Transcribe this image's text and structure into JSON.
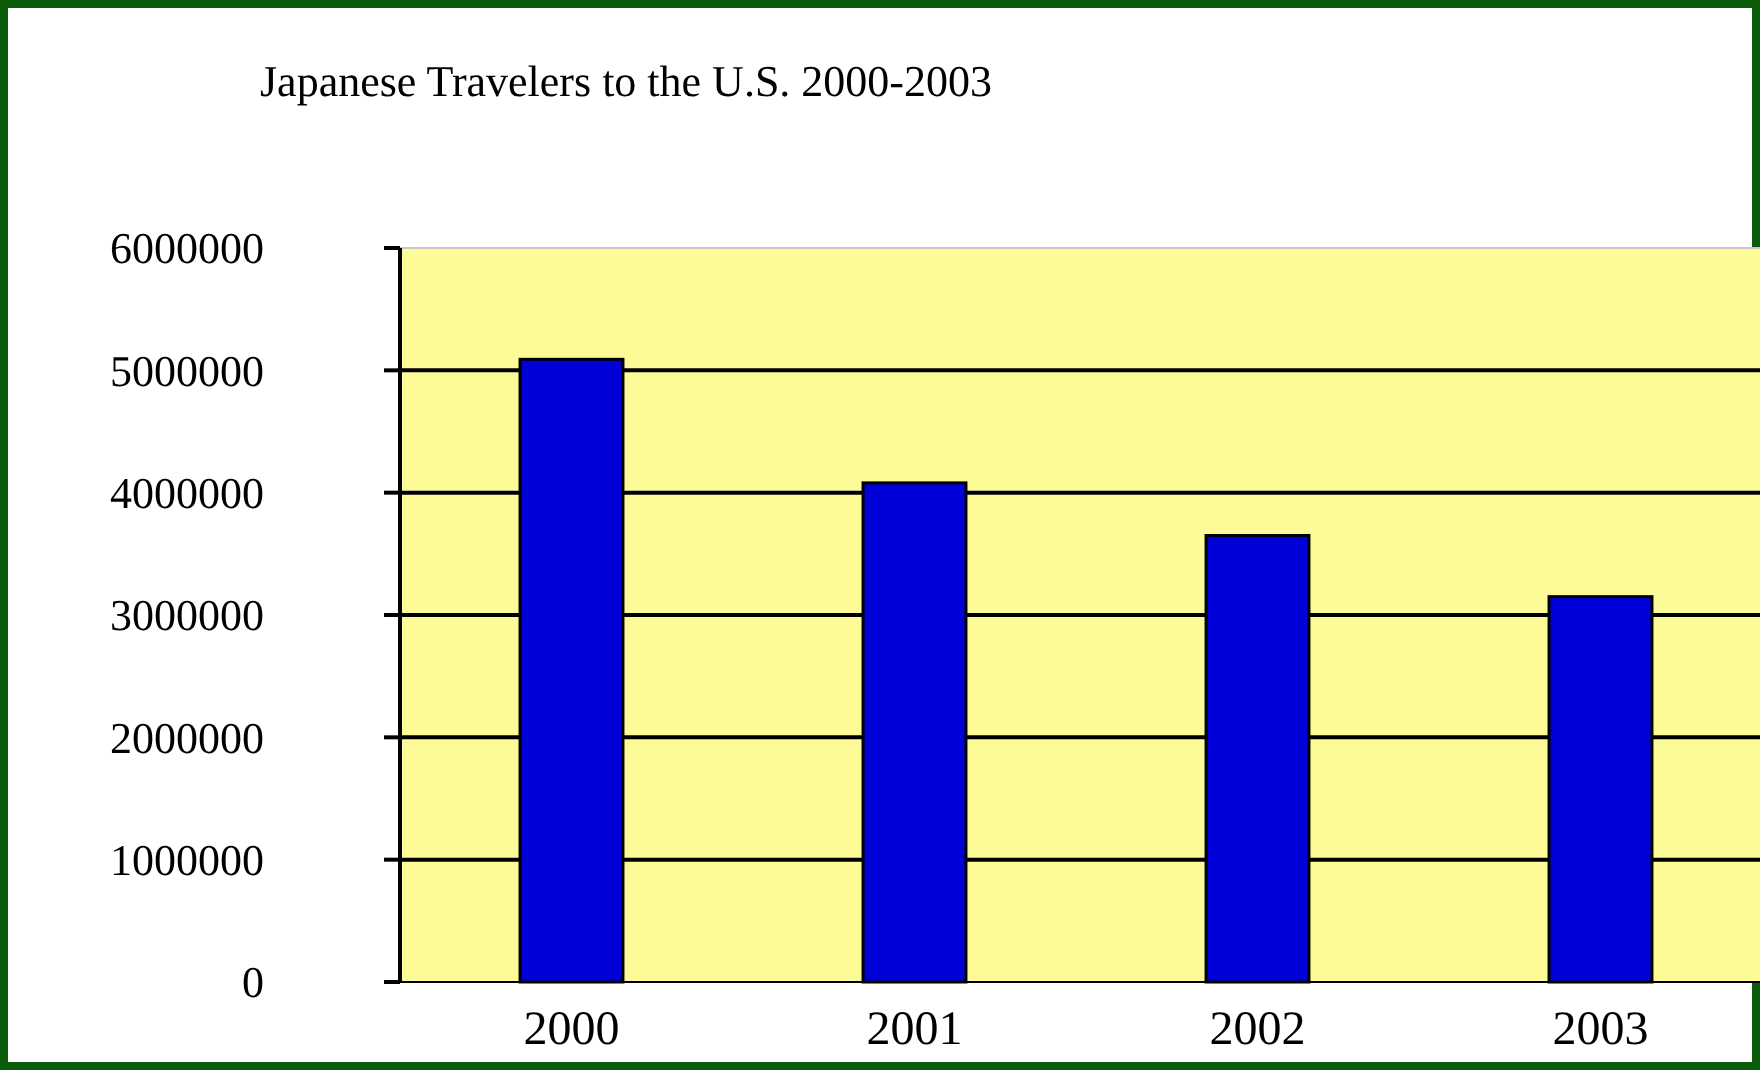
{
  "chart_data": {
    "type": "bar",
    "title": "Japanese Travelers to the U.S. 2000-2003",
    "categories": [
      "2000",
      "2001",
      "2002",
      "2003"
    ],
    "values": [
      5090000,
      4080000,
      3650000,
      3150000
    ],
    "color": "#0000d8",
    "ylim": [
      0,
      6000000
    ],
    "yticks": [
      0,
      1000000,
      2000000,
      3000000,
      4000000,
      5000000,
      6000000
    ],
    "grid": "y"
  }
}
